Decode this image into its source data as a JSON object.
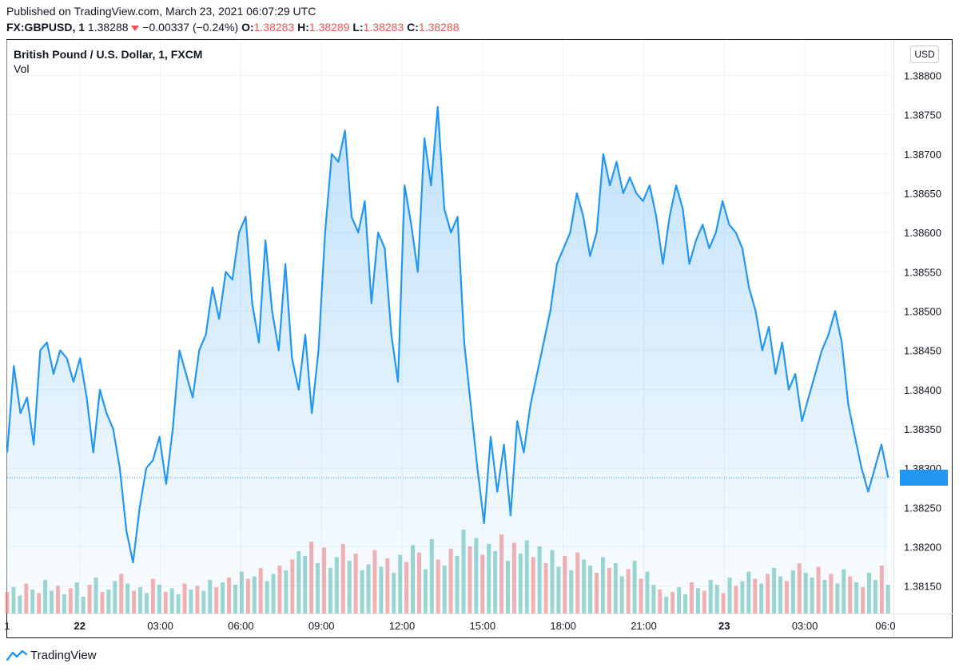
{
  "header": {
    "published": "Published on TradingView.com, March 23, 2021 06:07:29 UTC",
    "symbol": "FX:GBPUSD, 1",
    "last": "1.38288",
    "change": "−0.00337 (−0.24%)",
    "open_label": "O:",
    "open": "1.38283",
    "high_label": "H:",
    "high": "1.38289",
    "low_label": "L:",
    "low": "1.38283",
    "close_label": "C:",
    "close": "1.38288",
    "change_icon": "down-triangle-icon"
  },
  "legend": {
    "title": "British Pound / U.S. Dollar, 1, FXCM",
    "vol": "Vol"
  },
  "currency": "USD",
  "footer": {
    "brand": "TradingView",
    "logo_icon": "tradingview-logo-icon"
  },
  "colors": {
    "line": "#2196f3",
    "up_vol": "#26a69a",
    "down_vol": "#ef5350",
    "price_label_bg": "#2196f3"
  },
  "chart_data": {
    "type": "area",
    "title": "British Pound / U.S. Dollar, 1, FXCM",
    "xlabel": "",
    "ylabel": "USD",
    "ylim": [
      1.38115,
      1.38835
    ],
    "last_price": 1.38288,
    "y_ticks": [
      "1.38800",
      "1.38750",
      "1.38700",
      "1.38650",
      "1.38600",
      "1.38550",
      "1.38500",
      "1.38450",
      "1.38400",
      "1.38350",
      "1.38300",
      "1.38250",
      "1.38200",
      "1.38150"
    ],
    "x_ticks": [
      {
        "label": "1",
        "t": 0,
        "bold": false
      },
      {
        "label": "22",
        "t": 2.7,
        "bold": true
      },
      {
        "label": "03:00",
        "t": 5.7,
        "bold": false
      },
      {
        "label": "06:00",
        "t": 8.7,
        "bold": false
      },
      {
        "label": "09:00",
        "t": 11.7,
        "bold": false
      },
      {
        "label": "12:00",
        "t": 14.7,
        "bold": false
      },
      {
        "label": "15:00",
        "t": 17.7,
        "bold": false
      },
      {
        "label": "18:00",
        "t": 20.7,
        "bold": false
      },
      {
        "label": "21:00",
        "t": 23.7,
        "bold": false
      },
      {
        "label": "23",
        "t": 26.7,
        "bold": true
      },
      {
        "label": "03:00",
        "t": 29.7,
        "bold": false
      },
      {
        "label": "06:0",
        "t": 32.7,
        "bold": false
      }
    ],
    "series": [
      {
        "name": "GBPUSD",
        "t_range": [
          0,
          32.8
        ],
        "values": [
          1.3832,
          1.3843,
          1.3837,
          1.3839,
          1.3833,
          1.3845,
          1.3846,
          1.3842,
          1.3845,
          1.3844,
          1.3841,
          1.3844,
          1.3839,
          1.3832,
          1.384,
          1.3837,
          1.3835,
          1.383,
          1.3822,
          1.3818,
          1.3825,
          1.383,
          1.3831,
          1.3834,
          1.3828,
          1.3835,
          1.3845,
          1.3842,
          1.3839,
          1.3845,
          1.3847,
          1.3853,
          1.3849,
          1.3855,
          1.3854,
          1.386,
          1.3862,
          1.3851,
          1.3846,
          1.3859,
          1.385,
          1.3845,
          1.3856,
          1.3844,
          1.384,
          1.3847,
          1.3837,
          1.3845,
          1.386,
          1.387,
          1.3869,
          1.3873,
          1.3862,
          1.386,
          1.3864,
          1.3851,
          1.386,
          1.3858,
          1.3847,
          1.3841,
          1.3866,
          1.3861,
          1.3855,
          1.3872,
          1.3866,
          1.3876,
          1.3863,
          1.386,
          1.3862,
          1.3846,
          1.3838,
          1.383,
          1.3823,
          1.3834,
          1.3827,
          1.3833,
          1.3824,
          1.3836,
          1.3832,
          1.3838,
          1.3842,
          1.3846,
          1.385,
          1.3856,
          1.3858,
          1.386,
          1.3865,
          1.3862,
          1.3857,
          1.386,
          1.387,
          1.3866,
          1.3869,
          1.3865,
          1.3867,
          1.3865,
          1.3864,
          1.3866,
          1.3862,
          1.3856,
          1.3862,
          1.3866,
          1.3863,
          1.3856,
          1.3859,
          1.3861,
          1.3858,
          1.386,
          1.3864,
          1.3861,
          1.386,
          1.3858,
          1.3853,
          1.385,
          1.3845,
          1.3848,
          1.3842,
          1.3846,
          1.384,
          1.3842,
          1.3836,
          1.3839,
          1.3842,
          1.3845,
          1.3847,
          1.385,
          1.3846,
          1.3838,
          1.3834,
          1.383,
          1.3827,
          1.383,
          1.3833,
          1.38288
        ]
      }
    ],
    "volume": [
      {
        "t_range": [
          0,
          32.8
        ],
        "max": 100,
        "values": [
          18,
          22,
          15,
          25,
          20,
          17,
          28,
          19,
          23,
          16,
          21,
          26,
          14,
          24,
          30,
          18,
          20,
          27,
          33,
          25,
          19,
          22,
          17,
          29,
          24,
          18,
          21,
          16,
          25,
          20,
          23,
          19,
          28,
          22,
          26,
          30,
          24,
          35,
          29,
          31,
          38,
          27,
          33,
          40,
          36,
          45,
          52,
          48,
          60,
          42,
          55,
          38,
          47,
          58,
          44,
          50,
          36,
          41,
          53,
          39,
          46,
          34,
          49,
          43,
          57,
          51,
          37,
          62,
          45,
          40,
          54,
          48,
          70,
          56,
          63,
          49,
          58,
          52,
          66,
          44,
          59,
          50,
          61,
          47,
          56,
          42,
          53,
          39,
          48,
          36,
          51,
          45,
          40,
          34,
          47,
          38,
          42,
          31,
          37,
          44,
          29,
          35,
          24,
          20,
          14,
          18,
          22,
          16,
          26,
          21,
          19,
          28,
          24,
          17,
          30,
          23,
          27,
          35,
          29,
          25,
          33,
          38,
          31,
          27,
          36,
          42,
          34,
          30,
          39,
          28,
          33,
          25,
          37,
          31,
          26,
          22,
          34,
          28,
          40,
          24
        ]
      }
    ]
  }
}
